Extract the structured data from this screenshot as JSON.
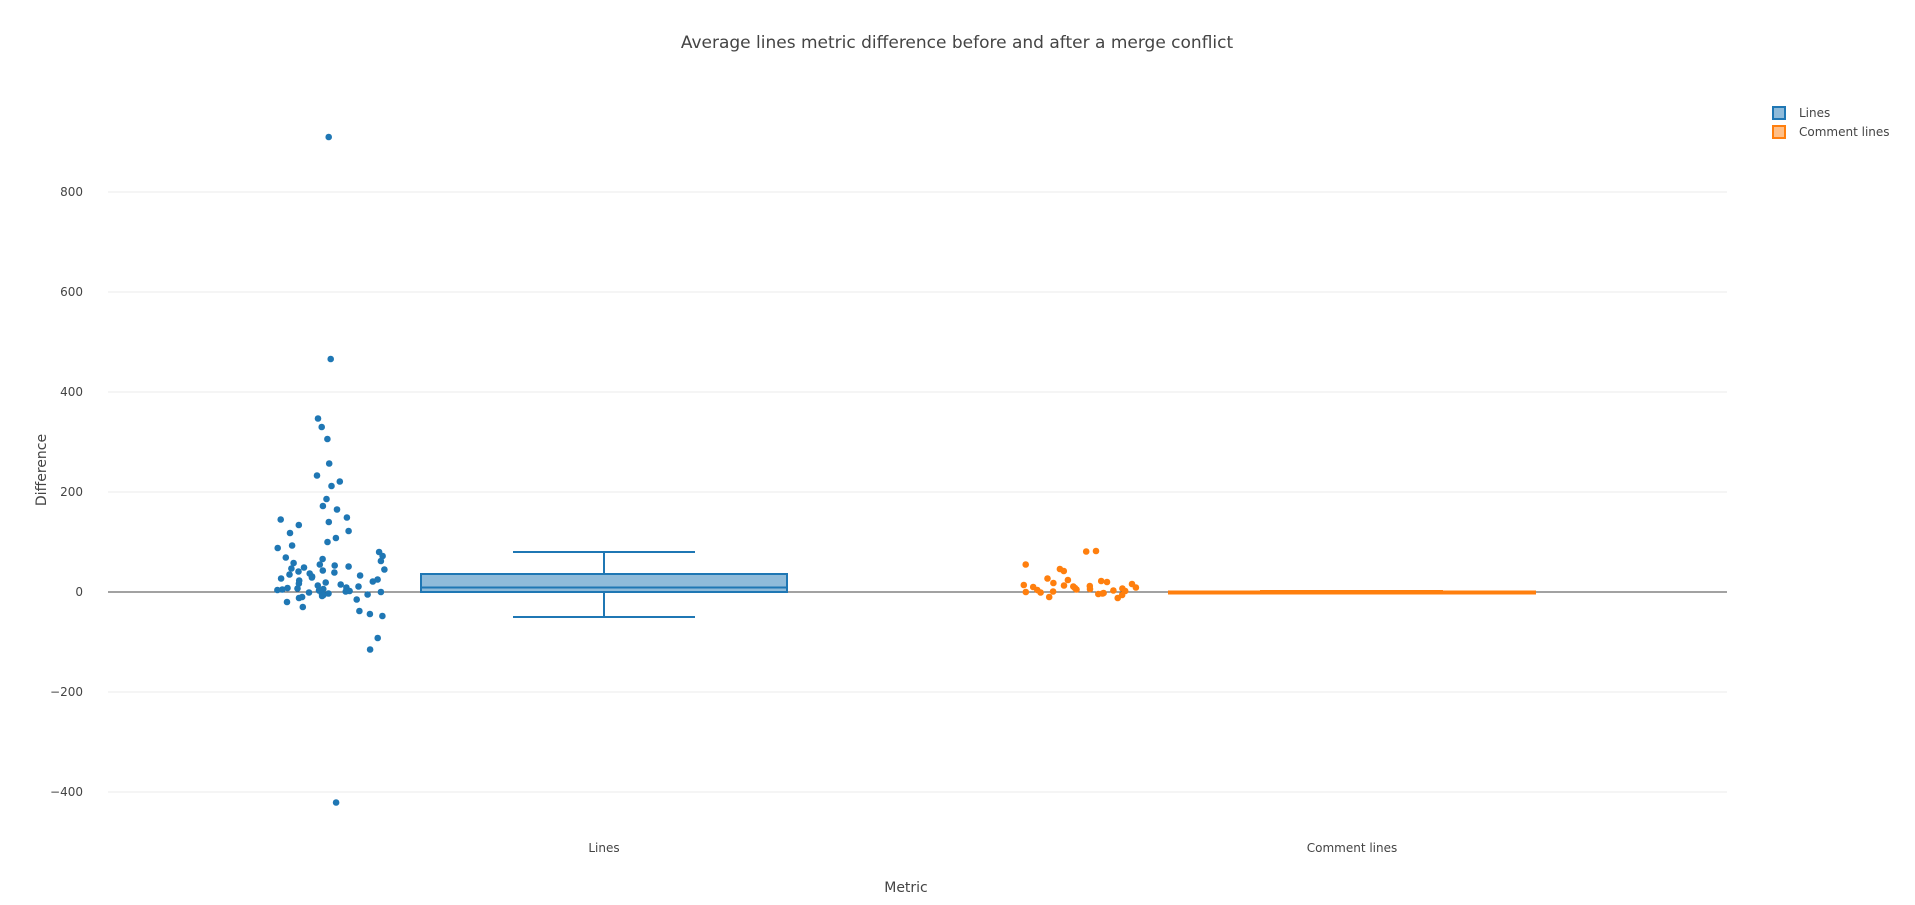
{
  "chart_data": {
    "type": "box",
    "title": "Average lines metric difference before and after a merge conflict",
    "xlabel": "Metric",
    "ylabel": "Difference",
    "categories": [
      "Lines",
      "Comment lines"
    ],
    "ylim": [
      -460,
      1010
    ],
    "yticks": [
      -400,
      -200,
      0,
      200,
      400,
      600,
      800
    ],
    "ytick_labels": [
      "−400",
      "−200",
      "0",
      "200",
      "400",
      "600",
      "800"
    ],
    "grid": true,
    "legend_position": "top-right",
    "series": [
      {
        "name": "Lines",
        "color": "#1f77b4",
        "fill": "#8fbbda",
        "q1": 0,
        "median": 9,
        "q3": 36,
        "whisker_low": -50,
        "whisker_high": 80,
        "points": [
          910,
          466,
          347,
          330,
          306,
          257,
          233,
          221,
          212,
          186,
          172,
          165,
          149,
          145,
          140,
          134,
          122,
          118,
          108,
          100,
          93,
          88,
          80,
          72,
          69,
          66,
          62,
          58,
          55,
          53,
          51,
          49,
          47,
          45,
          43,
          41,
          39,
          37,
          35,
          33,
          31,
          29,
          27,
          25,
          23,
          21,
          19,
          17,
          15,
          13,
          11,
          9,
          8,
          7,
          6,
          5,
          4,
          3,
          2,
          1,
          0,
          -1,
          -2,
          -3,
          -4,
          -5,
          -6,
          -8,
          -10,
          -12,
          -15,
          -20,
          -30,
          -38,
          -44,
          -48,
          -92,
          -115,
          -421
        ]
      },
      {
        "name": "Comment lines",
        "color": "#ff7f0e",
        "fill": "#ffbf87",
        "q1": 0,
        "median": 0,
        "q3": 1,
        "whisker_low": -1,
        "whisker_high": 2,
        "points": [
          82,
          81,
          55,
          46,
          42,
          27,
          24,
          22,
          20,
          18,
          16,
          14,
          13,
          12,
          11,
          10,
          9,
          8,
          7,
          6,
          5,
          4,
          3,
          2,
          1,
          0,
          -1,
          -2,
          -3,
          -4,
          -6,
          -10,
          -12
        ]
      }
    ]
  }
}
